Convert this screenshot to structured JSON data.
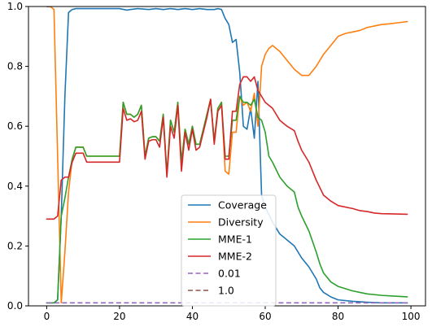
{
  "chart_data": {
    "type": "line",
    "title": "",
    "xlabel": "",
    "ylabel": "",
    "xlim": [
      -5,
      104
    ],
    "ylim": [
      0,
      1
    ],
    "xticks": [
      0,
      20,
      40,
      60,
      80,
      100
    ],
    "yticks": [
      0.0,
      0.2,
      0.4,
      0.6,
      0.8,
      1.0
    ],
    "xtick_labels": [
      "0",
      "20",
      "40",
      "60",
      "80",
      "100"
    ],
    "ytick_labels": [
      "0.0",
      "0.2",
      "0.4",
      "0.6",
      "0.8",
      "1.0"
    ],
    "grid": false,
    "legend_position": "lower-center",
    "series": [
      {
        "name": "Coverage",
        "color": "#1f77b4",
        "style": "solid",
        "points": [
          [
            0,
            0.01
          ],
          [
            1,
            0.01
          ],
          [
            2,
            0.01
          ],
          [
            3,
            0.02
          ],
          [
            4,
            0.3
          ],
          [
            5,
            0.7
          ],
          [
            6,
            0.98
          ],
          [
            7,
            0.99
          ],
          [
            8,
            0.993
          ],
          [
            10,
            0.993
          ],
          [
            15,
            0.993
          ],
          [
            20,
            0.993
          ],
          [
            22,
            0.988
          ],
          [
            23,
            0.99
          ],
          [
            25,
            0.993
          ],
          [
            28,
            0.99
          ],
          [
            30,
            0.993
          ],
          [
            32,
            0.99
          ],
          [
            34,
            0.993
          ],
          [
            36,
            0.99
          ],
          [
            38,
            0.993
          ],
          [
            40,
            0.99
          ],
          [
            42,
            0.993
          ],
          [
            44,
            0.99
          ],
          [
            46,
            0.99
          ],
          [
            47,
            0.993
          ],
          [
            48,
            0.99
          ],
          [
            49,
            0.96
          ],
          [
            50,
            0.94
          ],
          [
            51,
            0.88
          ],
          [
            52,
            0.89
          ],
          [
            53,
            0.78
          ],
          [
            54,
            0.6
          ],
          [
            55,
            0.59
          ],
          [
            56,
            0.66
          ],
          [
            57,
            0.56
          ],
          [
            58,
            0.75
          ],
          [
            59,
            0.37
          ],
          [
            60,
            0.33
          ],
          [
            62,
            0.28
          ],
          [
            64,
            0.24
          ],
          [
            66,
            0.22
          ],
          [
            68,
            0.2
          ],
          [
            70,
            0.16
          ],
          [
            72,
            0.13
          ],
          [
            74,
            0.09
          ],
          [
            75,
            0.06
          ],
          [
            76,
            0.045
          ],
          [
            78,
            0.03
          ],
          [
            80,
            0.02
          ],
          [
            84,
            0.015
          ],
          [
            88,
            0.012
          ],
          [
            92,
            0.01
          ],
          [
            96,
            0.01
          ],
          [
            99,
            0.01
          ]
        ]
      },
      {
        "name": "Diversity",
        "color": "#ff7f0e",
        "style": "solid",
        "points": [
          [
            0,
            1.0
          ],
          [
            1,
            1.0
          ],
          [
            2,
            0.99
          ],
          [
            3,
            0.5
          ],
          [
            4,
            0.01
          ],
          [
            5,
            0.18
          ],
          [
            6,
            0.38
          ],
          [
            7,
            0.49
          ],
          [
            8,
            0.53
          ],
          [
            10,
            0.53
          ],
          [
            11,
            0.5
          ],
          [
            15,
            0.5
          ],
          [
            20,
            0.5
          ],
          [
            21,
            0.68
          ],
          [
            22,
            0.64
          ],
          [
            23,
            0.64
          ],
          [
            24,
            0.63
          ],
          [
            25,
            0.64
          ],
          [
            26,
            0.67
          ],
          [
            27,
            0.5
          ],
          [
            28,
            0.56
          ],
          [
            29,
            0.565
          ],
          [
            30,
            0.565
          ],
          [
            31,
            0.55
          ],
          [
            32,
            0.64
          ],
          [
            33,
            0.44
          ],
          [
            34,
            0.62
          ],
          [
            35,
            0.58
          ],
          [
            36,
            0.68
          ],
          [
            37,
            0.48
          ],
          [
            38,
            0.59
          ],
          [
            39,
            0.54
          ],
          [
            40,
            0.6
          ],
          [
            41,
            0.54
          ],
          [
            42,
            0.54
          ],
          [
            43,
            0.59
          ],
          [
            44,
            0.64
          ],
          [
            45,
            0.69
          ],
          [
            46,
            0.55
          ],
          [
            47,
            0.66
          ],
          [
            48,
            0.68
          ],
          [
            49,
            0.45
          ],
          [
            50,
            0.44
          ],
          [
            51,
            0.58
          ],
          [
            52,
            0.58
          ],
          [
            53,
            0.7
          ],
          [
            54,
            0.67
          ],
          [
            55,
            0.68
          ],
          [
            56,
            0.65
          ],
          [
            57,
            0.71
          ],
          [
            58,
            0.6
          ],
          [
            59,
            0.8
          ],
          [
            60,
            0.84
          ],
          [
            61,
            0.86
          ],
          [
            62,
            0.87
          ],
          [
            64,
            0.85
          ],
          [
            66,
            0.82
          ],
          [
            68,
            0.79
          ],
          [
            70,
            0.77
          ],
          [
            72,
            0.77
          ],
          [
            74,
            0.8
          ],
          [
            76,
            0.84
          ],
          [
            78,
            0.87
          ],
          [
            80,
            0.9
          ],
          [
            82,
            0.91
          ],
          [
            84,
            0.915
          ],
          [
            86,
            0.92
          ],
          [
            88,
            0.93
          ],
          [
            90,
            0.935
          ],
          [
            92,
            0.94
          ],
          [
            94,
            0.942
          ],
          [
            96,
            0.945
          ],
          [
            98,
            0.948
          ],
          [
            99,
            0.95
          ]
        ]
      },
      {
        "name": "MME-1",
        "color": "#2ca02c",
        "style": "solid",
        "points": [
          [
            0,
            0.01
          ],
          [
            1,
            0.01
          ],
          [
            2,
            0.01
          ],
          [
            3,
            0.02
          ],
          [
            4,
            0.3
          ],
          [
            5,
            0.36
          ],
          [
            6,
            0.43
          ],
          [
            7,
            0.49
          ],
          [
            8,
            0.53
          ],
          [
            10,
            0.53
          ],
          [
            11,
            0.5
          ],
          [
            15,
            0.5
          ],
          [
            20,
            0.5
          ],
          [
            21,
            0.68
          ],
          [
            22,
            0.64
          ],
          [
            23,
            0.64
          ],
          [
            24,
            0.63
          ],
          [
            25,
            0.64
          ],
          [
            26,
            0.67
          ],
          [
            27,
            0.5
          ],
          [
            28,
            0.56
          ],
          [
            29,
            0.565
          ],
          [
            30,
            0.565
          ],
          [
            31,
            0.55
          ],
          [
            32,
            0.64
          ],
          [
            33,
            0.44
          ],
          [
            34,
            0.62
          ],
          [
            35,
            0.58
          ],
          [
            36,
            0.68
          ],
          [
            37,
            0.48
          ],
          [
            38,
            0.59
          ],
          [
            39,
            0.54
          ],
          [
            40,
            0.6
          ],
          [
            41,
            0.54
          ],
          [
            42,
            0.54
          ],
          [
            43,
            0.59
          ],
          [
            44,
            0.64
          ],
          [
            45,
            0.69
          ],
          [
            46,
            0.55
          ],
          [
            47,
            0.66
          ],
          [
            48,
            0.68
          ],
          [
            49,
            0.5
          ],
          [
            50,
            0.5
          ],
          [
            51,
            0.62
          ],
          [
            52,
            0.62
          ],
          [
            53,
            0.7
          ],
          [
            54,
            0.68
          ],
          [
            55,
            0.68
          ],
          [
            56,
            0.67
          ],
          [
            57,
            0.69
          ],
          [
            58,
            0.63
          ],
          [
            59,
            0.62
          ],
          [
            60,
            0.58
          ],
          [
            61,
            0.5
          ],
          [
            62,
            0.48
          ],
          [
            64,
            0.43
          ],
          [
            66,
            0.4
          ],
          [
            68,
            0.38
          ],
          [
            69,
            0.33
          ],
          [
            70,
            0.3
          ],
          [
            72,
            0.25
          ],
          [
            74,
            0.18
          ],
          [
            75,
            0.14
          ],
          [
            76,
            0.11
          ],
          [
            78,
            0.08
          ],
          [
            80,
            0.065
          ],
          [
            84,
            0.05
          ],
          [
            88,
            0.04
          ],
          [
            92,
            0.035
          ],
          [
            96,
            0.032
          ],
          [
            99,
            0.03
          ]
        ]
      },
      {
        "name": "MME-2",
        "color": "#d62728",
        "style": "solid",
        "points": [
          [
            0,
            0.29
          ],
          [
            1,
            0.29
          ],
          [
            2,
            0.29
          ],
          [
            3,
            0.3
          ],
          [
            4,
            0.42
          ],
          [
            5,
            0.43
          ],
          [
            6,
            0.43
          ],
          [
            7,
            0.48
          ],
          [
            8,
            0.51
          ],
          [
            10,
            0.51
          ],
          [
            11,
            0.48
          ],
          [
            15,
            0.48
          ],
          [
            20,
            0.48
          ],
          [
            21,
            0.66
          ],
          [
            22,
            0.62
          ],
          [
            23,
            0.625
          ],
          [
            24,
            0.615
          ],
          [
            25,
            0.62
          ],
          [
            26,
            0.65
          ],
          [
            27,
            0.49
          ],
          [
            28,
            0.55
          ],
          [
            29,
            0.555
          ],
          [
            30,
            0.555
          ],
          [
            31,
            0.53
          ],
          [
            32,
            0.63
          ],
          [
            33,
            0.43
          ],
          [
            34,
            0.6
          ],
          [
            35,
            0.56
          ],
          [
            36,
            0.67
          ],
          [
            37,
            0.45
          ],
          [
            38,
            0.58
          ],
          [
            39,
            0.52
          ],
          [
            40,
            0.59
          ],
          [
            41,
            0.52
          ],
          [
            42,
            0.53
          ],
          [
            43,
            0.58
          ],
          [
            44,
            0.63
          ],
          [
            45,
            0.69
          ],
          [
            46,
            0.54
          ],
          [
            47,
            0.65
          ],
          [
            48,
            0.67
          ],
          [
            49,
            0.49
          ],
          [
            50,
            0.49
          ],
          [
            51,
            0.65
          ],
          [
            52,
            0.65
          ],
          [
            53,
            0.74
          ],
          [
            54,
            0.765
          ],
          [
            55,
            0.765
          ],
          [
            56,
            0.75
          ],
          [
            57,
            0.765
          ],
          [
            58,
            0.72
          ],
          [
            59,
            0.7
          ],
          [
            60,
            0.68
          ],
          [
            62,
            0.66
          ],
          [
            64,
            0.62
          ],
          [
            66,
            0.6
          ],
          [
            68,
            0.585
          ],
          [
            69,
            0.55
          ],
          [
            70,
            0.52
          ],
          [
            72,
            0.48
          ],
          [
            74,
            0.42
          ],
          [
            76,
            0.37
          ],
          [
            78,
            0.35
          ],
          [
            80,
            0.335
          ],
          [
            84,
            0.325
          ],
          [
            86,
            0.318
          ],
          [
            88,
            0.315
          ],
          [
            90,
            0.31
          ],
          [
            92,
            0.308
          ],
          [
            96,
            0.307
          ],
          [
            99,
            0.306
          ]
        ]
      },
      {
        "name": "0.01",
        "color": "#9467bd",
        "style": "dashed",
        "points": [
          [
            0,
            0.01
          ],
          [
            99,
            0.01
          ]
        ]
      },
      {
        "name": "1.0",
        "color": "#8c564b",
        "style": "dashed",
        "points": [
          [
            0,
            1.0
          ],
          [
            1,
            1.0
          ]
        ]
      }
    ]
  }
}
